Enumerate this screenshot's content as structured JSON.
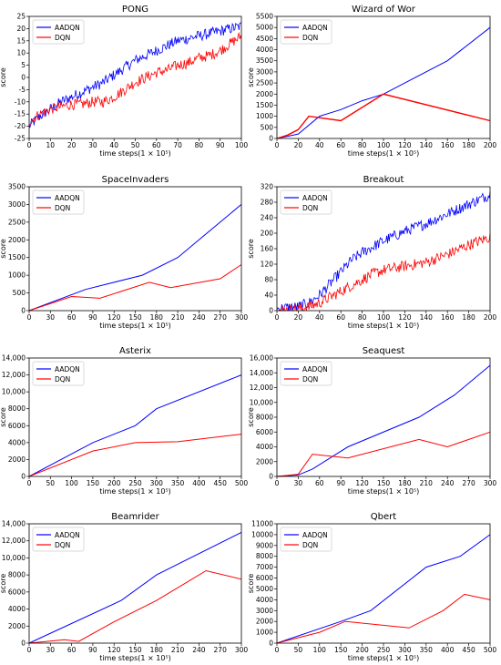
{
  "colors": {
    "AADQN": "#0000ff",
    "DQN": "#ff0000"
  },
  "chart_data": [
    {
      "type": "line",
      "title": "PONG",
      "xlabel": "time steps(1 × 10⁵)",
      "ylabel": "score",
      "xlim": [
        0,
        100
      ],
      "ylim": [
        -25,
        25
      ],
      "xticks": [
        0,
        10,
        20,
        30,
        40,
        50,
        60,
        70,
        80,
        90,
        100
      ],
      "yticks": [
        -25,
        -20,
        -15,
        -10,
        -5,
        0,
        5,
        10,
        15,
        20,
        25
      ],
      "legend": "top-left",
      "noisy": true,
      "series": [
        {
          "name": "AADQN",
          "x": [
            0,
            5,
            10,
            15,
            20,
            25,
            30,
            35,
            40,
            45,
            50,
            55,
            60,
            65,
            70,
            75,
            80,
            85,
            90,
            95,
            100
          ],
          "y": [
            -20,
            -16,
            -13,
            -10,
            -8,
            -6,
            -4,
            -2,
            1,
            4,
            7,
            9,
            11,
            13,
            15,
            16,
            17,
            18,
            19,
            20,
            21
          ]
        },
        {
          "name": "DQN",
          "x": [
            0,
            5,
            10,
            15,
            20,
            25,
            30,
            35,
            40,
            45,
            50,
            55,
            60,
            65,
            70,
            75,
            80,
            85,
            90,
            95,
            100
          ],
          "y": [
            -18,
            -15,
            -13,
            -12,
            -11,
            -11,
            -10,
            -10,
            -8,
            -5,
            -2,
            0,
            2,
            3,
            5,
            6,
            8,
            9,
            11,
            14,
            17
          ]
        }
      ]
    },
    {
      "type": "line",
      "title": "Wizard of Wor",
      "xlabel": "time steps(1 × 10⁵)",
      "ylabel": "score",
      "xlim": [
        0,
        200
      ],
      "ylim": [
        0,
        5500
      ],
      "xticks": [
        0,
        20,
        40,
        60,
        80,
        100,
        120,
        140,
        160,
        180,
        200
      ],
      "yticks": [
        0,
        500,
        1000,
        1500,
        2000,
        2500,
        3000,
        3500,
        4000,
        4500,
        5000,
        5500
      ],
      "legend": "top-left",
      "series": [
        {
          "name": "AADQN",
          "x": [
            0,
            10,
            20,
            40,
            60,
            80,
            100,
            120,
            160,
            200
          ],
          "y": [
            0,
            100,
            200,
            1000,
            1300,
            1700,
            2000,
            2500,
            3500,
            5000
          ]
        },
        {
          "name": "DQN",
          "x": [
            0,
            10,
            20,
            30,
            60,
            100,
            200
          ],
          "y": [
            0,
            150,
            400,
            1000,
            800,
            2000,
            800
          ]
        }
      ]
    },
    {
      "type": "line",
      "title": "SpaceInvaders",
      "xlabel": "time steps(1 × 10⁵)",
      "ylabel": "score",
      "xlim": [
        0,
        300
      ],
      "ylim": [
        0,
        3500
      ],
      "xticks": [
        0,
        30,
        60,
        90,
        120,
        150,
        180,
        210,
        240,
        270,
        300
      ],
      "yticks": [
        0,
        500,
        1000,
        1500,
        2000,
        2500,
        3000,
        3500
      ],
      "legend": "top-left",
      "series": [
        {
          "name": "AADQN",
          "x": [
            0,
            80,
            160,
            210,
            300
          ],
          "y": [
            0,
            600,
            1000,
            1500,
            3000
          ]
        },
        {
          "name": "DQN",
          "x": [
            0,
            60,
            100,
            170,
            200,
            270,
            300
          ],
          "y": [
            0,
            400,
            350,
            800,
            650,
            900,
            1300
          ]
        }
      ]
    },
    {
      "type": "line",
      "title": "Breakout",
      "xlabel": "time steps(1 × 10⁵)",
      "ylabel": "score",
      "xlim": [
        0,
        200
      ],
      "ylim": [
        0,
        320
      ],
      "xticks": [
        0,
        20,
        40,
        60,
        80,
        100,
        120,
        140,
        160,
        180,
        200
      ],
      "yticks": [
        0,
        40,
        80,
        120,
        160,
        200,
        240,
        280,
        320
      ],
      "legend": "top-left",
      "noisy": true,
      "series": [
        {
          "name": "AADQN",
          "x": [
            0,
            10,
            20,
            30,
            40,
            50,
            60,
            70,
            80,
            90,
            100,
            120,
            140,
            160,
            180,
            200
          ],
          "y": [
            5,
            8,
            10,
            20,
            40,
            70,
            100,
            130,
            150,
            165,
            180,
            205,
            225,
            250,
            275,
            300
          ]
        },
        {
          "name": "DQN",
          "x": [
            0,
            10,
            20,
            30,
            40,
            50,
            60,
            70,
            80,
            90,
            100,
            120,
            140,
            160,
            180,
            200
          ],
          "y": [
            0,
            2,
            5,
            10,
            20,
            35,
            50,
            65,
            80,
            95,
            105,
            115,
            125,
            145,
            170,
            190
          ]
        }
      ]
    },
    {
      "type": "line",
      "title": "Asterix",
      "xlabel": "time steps(1 × 10⁵)",
      "ylabel": "score",
      "xlim": [
        0,
        500
      ],
      "ylim": [
        0,
        14000
      ],
      "xticks": [
        0,
        50,
        100,
        150,
        200,
        250,
        300,
        350,
        400,
        450,
        500
      ],
      "yticks": [
        0,
        2000,
        4000,
        6000,
        8000,
        10000,
        12000,
        14000
      ],
      "yticklabels": [
        "0",
        "2000",
        "4000",
        "6000",
        "8000",
        "10,000",
        "12,000",
        "14,000"
      ],
      "legend": "top-left",
      "series": [
        {
          "name": "AADQN",
          "x": [
            0,
            150,
            250,
            300,
            500
          ],
          "y": [
            0,
            4000,
            6000,
            8000,
            12000
          ]
        },
        {
          "name": "DQN",
          "x": [
            0,
            150,
            250,
            350,
            500
          ],
          "y": [
            0,
            3000,
            4000,
            4100,
            5000
          ]
        }
      ]
    },
    {
      "type": "line",
      "title": "Seaquest",
      "xlabel": "time steps(1 × 10⁵)",
      "ylabel": "score",
      "xlim": [
        0,
        300
      ],
      "ylim": [
        0,
        16000
      ],
      "xticks": [
        0,
        30,
        60,
        90,
        120,
        150,
        180,
        210,
        240,
        270,
        300
      ],
      "yticks": [
        0,
        2000,
        4000,
        6000,
        8000,
        10000,
        12000,
        14000,
        16000
      ],
      "yticklabels": [
        "0",
        "2000",
        "4000",
        "6000",
        "8000",
        "10,000",
        "12,000",
        "14,000",
        "16,000"
      ],
      "legend": "top-left",
      "series": [
        {
          "name": "AADQN",
          "x": [
            0,
            30,
            50,
            100,
            200,
            250,
            300
          ],
          "y": [
            0,
            200,
            1000,
            4000,
            8000,
            11000,
            15000
          ]
        },
        {
          "name": "DQN",
          "x": [
            0,
            30,
            50,
            100,
            200,
            240,
            300
          ],
          "y": [
            0,
            300,
            3000,
            2500,
            5000,
            4000,
            6000
          ]
        }
      ]
    },
    {
      "type": "line",
      "title": "Beamrider",
      "xlabel": "time steps(1 × 10⁵)",
      "ylabel": "score",
      "xlim": [
        0,
        300
      ],
      "ylim": [
        0,
        14000
      ],
      "xticks": [
        0,
        30,
        60,
        90,
        120,
        150,
        180,
        210,
        240,
        270,
        300
      ],
      "yticks": [
        0,
        2000,
        4000,
        6000,
        8000,
        10000,
        12000,
        14000
      ],
      "yticklabels": [
        "0",
        "2000",
        "4000",
        "6000",
        "8000",
        "10,000",
        "12,000",
        "14,000"
      ],
      "legend": "top-left",
      "series": [
        {
          "name": "AADQN",
          "x": [
            0,
            130,
            180,
            300
          ],
          "y": [
            0,
            5000,
            8000,
            13000
          ]
        },
        {
          "name": "DQN",
          "x": [
            0,
            50,
            70,
            120,
            180,
            250,
            300
          ],
          "y": [
            0,
            400,
            200,
            2500,
            5000,
            8500,
            7500
          ]
        }
      ]
    },
    {
      "type": "line",
      "title": "Qbert",
      "xlabel": "time steps(1 × 10⁵)",
      "ylabel": "score",
      "xlim": [
        0,
        500
      ],
      "ylim": [
        0,
        11000
      ],
      "xticks": [
        0,
        50,
        100,
        150,
        200,
        250,
        300,
        350,
        400,
        450,
        500
      ],
      "yticks": [
        0,
        1000,
        2000,
        3000,
        4000,
        5000,
        6000,
        7000,
        8000,
        9000,
        10000,
        11000
      ],
      "legend": "top-left",
      "series": [
        {
          "name": "AADQN",
          "x": [
            0,
            150,
            220,
            350,
            430,
            500
          ],
          "y": [
            0,
            2000,
            3000,
            7000,
            8000,
            10000
          ]
        },
        {
          "name": "DQN",
          "x": [
            0,
            100,
            160,
            310,
            390,
            440,
            500
          ],
          "y": [
            0,
            1000,
            2000,
            1400,
            3000,
            4500,
            4000
          ]
        }
      ]
    }
  ]
}
